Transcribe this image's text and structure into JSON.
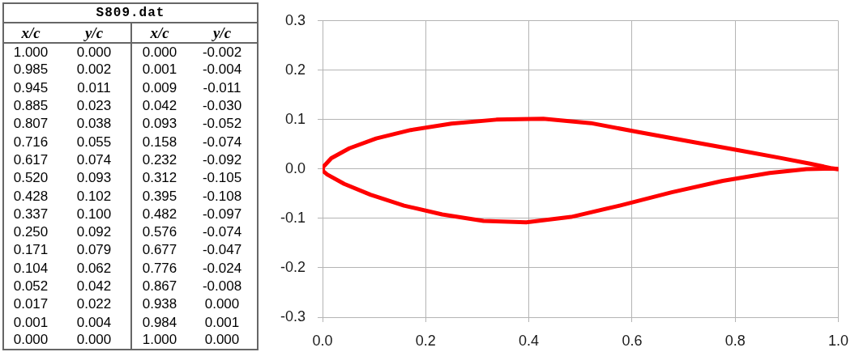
{
  "chart_data": [
    {
      "type": "other",
      "title": "S809.dat",
      "categories": [
        "x/c",
        "y/c",
        "x/c",
        "y/c"
      ],
      "cell_labels": [
        [
          "1.000",
          "0.000",
          "0.000",
          "-0.002"
        ],
        [
          "0.985",
          "0.002",
          "0.001",
          "-0.004"
        ],
        [
          "0.945",
          "0.011",
          "0.009",
          "-0.011"
        ],
        [
          "0.885",
          "0.023",
          "0.042",
          "-0.030"
        ],
        [
          "0.807",
          "0.038",
          "0.093",
          "-0.052"
        ],
        [
          "0.716",
          "0.055",
          "0.158",
          "-0.074"
        ],
        [
          "0.617",
          "0.074",
          "0.232",
          "-0.092"
        ],
        [
          "0.520",
          "0.093",
          "0.312",
          "-0.105"
        ],
        [
          "0.428",
          "0.102",
          "0.395",
          "-0.108"
        ],
        [
          "0.337",
          "0.100",
          "0.482",
          "-0.097"
        ],
        [
          "0.250",
          "0.092",
          "0.576",
          "-0.074"
        ],
        [
          "0.171",
          "0.079",
          "0.677",
          "-0.047"
        ],
        [
          "0.104",
          "0.062",
          "0.776",
          "-0.024"
        ],
        [
          "0.052",
          "0.042",
          "0.867",
          "-0.008"
        ],
        [
          "0.017",
          "0.022",
          "0.938",
          "0.000"
        ],
        [
          "0.001",
          "0.004",
          "0.984",
          "0.001"
        ],
        [
          "0.000",
          "0.000",
          "1.000",
          "0.000"
        ]
      ]
    },
    {
      "type": "line",
      "series": [
        {
          "color": "#ff0000",
          "x": [
            1.0,
            0.985,
            0.945,
            0.885,
            0.807,
            0.716,
            0.617,
            0.52,
            0.428,
            0.337,
            0.25,
            0.171,
            0.104,
            0.052,
            0.017,
            0.001,
            0.0
          ],
          "values": [
            0.0,
            0.002,
            0.011,
            0.023,
            0.038,
            0.055,
            0.074,
            0.093,
            0.102,
            0.1,
            0.092,
            0.079,
            0.062,
            0.042,
            0.022,
            0.004,
            0.0
          ]
        },
        {
          "color": "#ff0000",
          "x": [
            0.0,
            0.001,
            0.009,
            0.042,
            0.093,
            0.158,
            0.232,
            0.312,
            0.395,
            0.482,
            0.576,
            0.677,
            0.776,
            0.867,
            0.938,
            0.984,
            1.0
          ],
          "values": [
            -0.002,
            -0.004,
            -0.011,
            -0.03,
            -0.052,
            -0.074,
            -0.092,
            -0.105,
            -0.108,
            -0.097,
            -0.074,
            -0.047,
            -0.024,
            -0.008,
            0.0,
            0.001,
            0.0
          ]
        }
      ],
      "xlim": [
        0,
        1
      ],
      "ylim": [
        -0.3,
        0.3
      ],
      "xticks": [
        {
          "value": 0,
          "label": "0.0"
        },
        0.2,
        0.4,
        0.6,
        0.8,
        {
          "value": 1,
          "label": "1.0"
        }
      ],
      "yticks": [
        -0.3,
        -0.2,
        -0.1,
        {
          "value": 0,
          "label": "0.0"
        },
        0.1,
        0.2,
        0.3
      ],
      "grid": true,
      "marker": "none"
    }
  ]
}
